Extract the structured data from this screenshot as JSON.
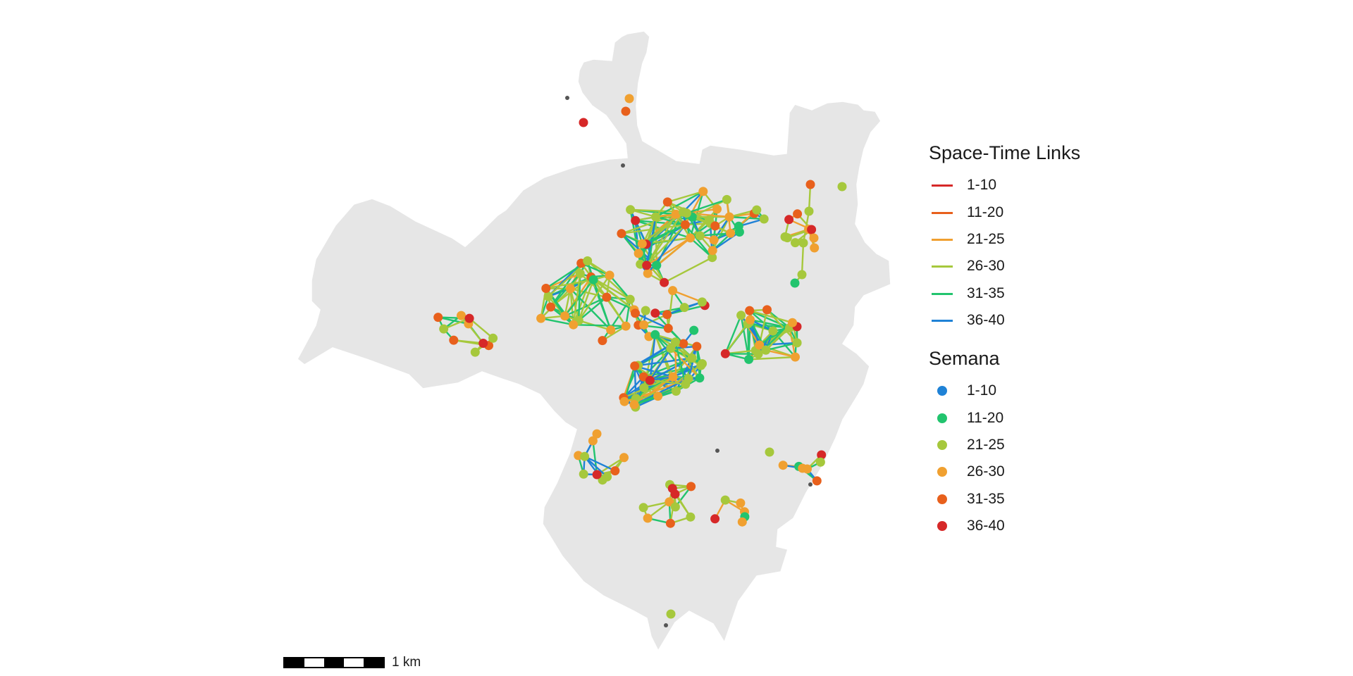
{
  "legend": {
    "links": {
      "title": "Space-Time Links",
      "items": [
        {
          "label": "1-10",
          "color": "#d62828"
        },
        {
          "label": "11-20",
          "color": "#e8601c"
        },
        {
          "label": "21-25",
          "color": "#f0a030"
        },
        {
          "label": "26-30",
          "color": "#a6c83c"
        },
        {
          "label": "31-35",
          "color": "#22c46e"
        },
        {
          "label": "36-40",
          "color": "#1f82d6"
        }
      ]
    },
    "semana": {
      "title": "Semana",
      "items": [
        {
          "label": "1-10",
          "color": "#1f82d6"
        },
        {
          "label": "11-20",
          "color": "#22c46e"
        },
        {
          "label": "21-25",
          "color": "#a6c83c"
        },
        {
          "label": "26-30",
          "color": "#f0a030"
        },
        {
          "label": "31-35",
          "color": "#e8601c"
        },
        {
          "label": "36-40",
          "color": "#d62828"
        }
      ]
    }
  },
  "scale_bar": {
    "label": "1 km"
  },
  "map_colors": {
    "land": "#e6e6e6",
    "inactive_point": "#555555"
  }
}
